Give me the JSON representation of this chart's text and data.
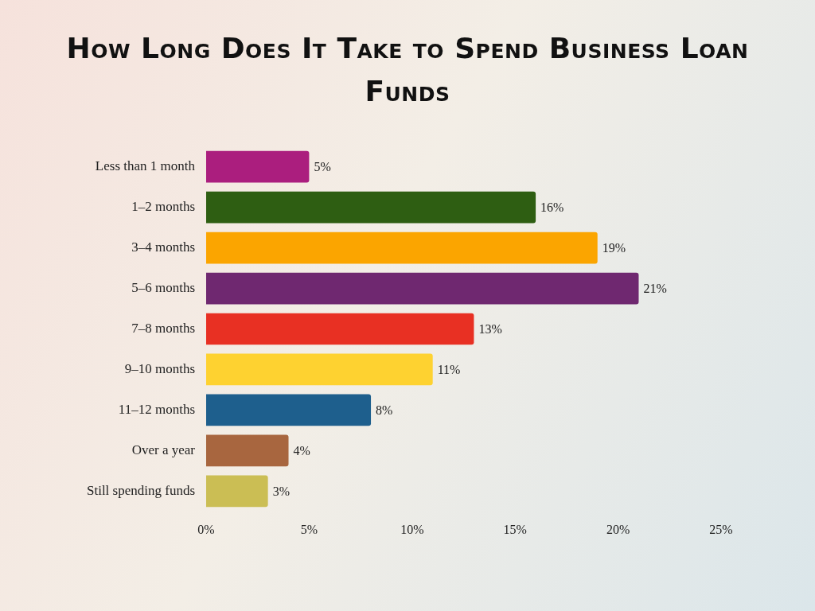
{
  "chart_data": {
    "type": "bar",
    "orientation": "horizontal",
    "title": "How Long Does It Take to Spend Business Loan Funds",
    "categories": [
      "Less than 1 month",
      "1–2 months",
      "3–4 months",
      "5–6 months",
      "7–8 months",
      "9–10 months",
      "11–12 months",
      "Over a year",
      "Still spending funds"
    ],
    "values": [
      5,
      16,
      19,
      21,
      13,
      11,
      8,
      4,
      3
    ],
    "value_labels": [
      "5%",
      "16%",
      "19%",
      "21%",
      "13%",
      "11%",
      "8%",
      "4%",
      "3%"
    ],
    "colors": [
      "#ab1e7e",
      "#2e5e12",
      "#fba500",
      "#6f2870",
      "#e83023",
      "#fed230",
      "#1e5f8d",
      "#a8663f",
      "#cbbe54"
    ],
    "xlim": [
      0,
      25
    ],
    "xticks": [
      {
        "value": 0,
        "label": "0%"
      },
      {
        "value": 5,
        "label": "5%"
      },
      {
        "value": 10,
        "label": "10%"
      },
      {
        "value": 15,
        "label": "15%"
      },
      {
        "value": 20,
        "label": "20%"
      },
      {
        "value": 25,
        "label": "25%"
      }
    ],
    "grid": false,
    "legend": false
  }
}
